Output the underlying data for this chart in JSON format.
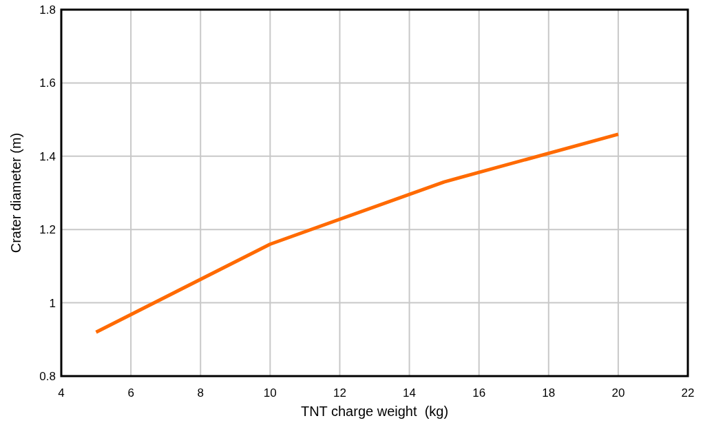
{
  "chart_data": {
    "type": "line",
    "xlabel": "TNT charge weight  (kg)",
    "ylabel": "Crater diameter (m)",
    "x": [
      5,
      10,
      15,
      20
    ],
    "series": [
      {
        "color": "#ff6a00",
        "values": [
          0.92,
          1.16,
          1.33,
          1.46
        ]
      }
    ],
    "xlim": [
      4,
      22
    ],
    "xticks": [
      4,
      6,
      8,
      10,
      12,
      14,
      16,
      18,
      20,
      22
    ],
    "ylim": [
      0.8,
      1.8
    ],
    "yticks": [
      0.8,
      1,
      1.2,
      1.4,
      1.6,
      1.8
    ],
    "grid": true,
    "marker": "none",
    "line_style": "solid"
  }
}
